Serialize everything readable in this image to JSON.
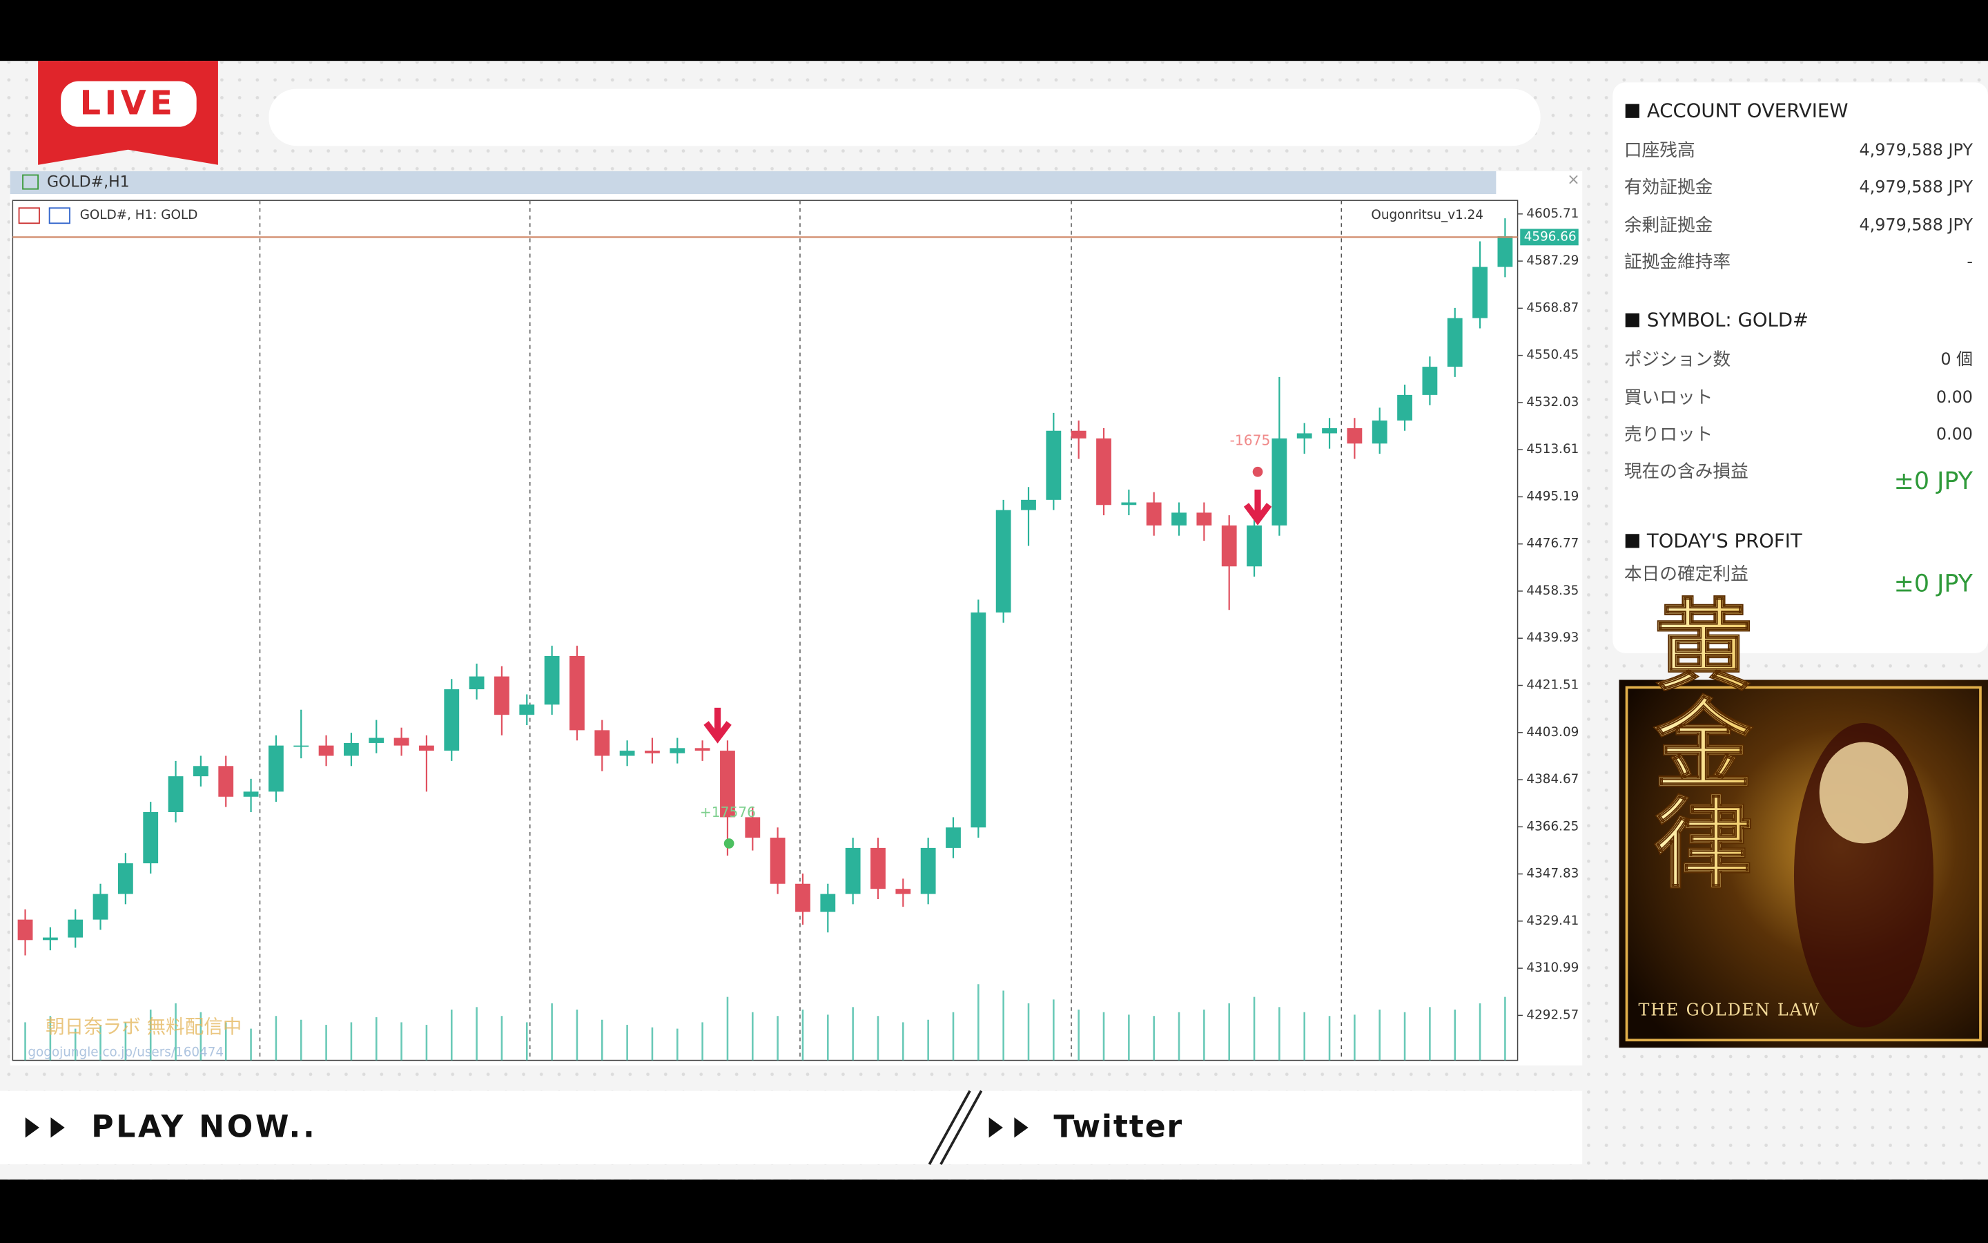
{
  "live_badge": "LIVE",
  "chart_window": {
    "title": "GOLD#,H1",
    "label": "GOLD#, H1:  GOLD",
    "indicator": "Ougonritsu_v1.24",
    "watermark": "朝日奈ラボ 無料配信中",
    "watermark_url": "gogojungle.co.jp/users/160474"
  },
  "chart_data": {
    "type": "candlestick",
    "up_color": "#2bb39a",
    "down_color": "#e0505f",
    "grid": true,
    "open": [
      4330,
      4322,
      4323,
      4330,
      4340,
      4352,
      4372,
      4386,
      4390,
      4378,
      4380,
      4398,
      4398,
      4394,
      4399,
      4401,
      4398,
      4396,
      4420,
      4425,
      4410,
      4414,
      4433,
      4404,
      4394,
      4396,
      4395,
      4397,
      4396,
      4370,
      4362,
      4344,
      4333,
      4340,
      4358,
      4342,
      4340,
      4358,
      4366,
      4450,
      4490,
      4494,
      4521,
      4518,
      4492,
      4493,
      4484,
      4489,
      4484,
      4468,
      4484,
      4518,
      4520,
      4522,
      4516,
      4525,
      4535,
      4546,
      4565,
      4585
    ],
    "high": [
      4334,
      4327,
      4334,
      4344,
      4356,
      4376,
      4392,
      4394,
      4394,
      4385,
      4402,
      4412,
      4402,
      4403,
      4408,
      4405,
      4402,
      4424,
      4430,
      4429,
      4418,
      4437,
      4437,
      4408,
      4400,
      4401,
      4401,
      4400,
      4400,
      4374,
      4366,
      4348,
      4344,
      4362,
      4362,
      4346,
      4362,
      4370,
      4455,
      4494,
      4499,
      4528,
      4525,
      4522,
      4498,
      4497,
      4493,
      4493,
      4488,
      4488,
      4542,
      4524,
      4526,
      4526,
      4530,
      4539,
      4550,
      4569,
      4595,
      4604
    ],
    "low": [
      4316,
      4318,
      4319,
      4326,
      4336,
      4348,
      4368,
      4382,
      4374,
      4372,
      4376,
      4393,
      4390,
      4390,
      4395,
      4394,
      4380,
      4392,
      4416,
      4402,
      4406,
      4410,
      4400,
      4388,
      4390,
      4391,
      4391,
      4392,
      4355,
      4357,
      4340,
      4328,
      4325,
      4336,
      4338,
      4335,
      4336,
      4354,
      4362,
      4446,
      4476,
      4490,
      4510,
      4488,
      4488,
      4480,
      4480,
      4478,
      4451,
      4464,
      4480,
      4512,
      4514,
      4510,
      4512,
      4521,
      4531,
      4542,
      4561,
      4581
    ],
    "close": [
      4322,
      4323,
      4330,
      4340,
      4352,
      4372,
      4386,
      4390,
      4378,
      4380,
      4398,
      4398,
      4394,
      4399,
      4401,
      4398,
      4396,
      4420,
      4425,
      4410,
      4414,
      4433,
      4404,
      4394,
      4396,
      4395,
      4397,
      4396,
      4370,
      4362,
      4344,
      4333,
      4340,
      4358,
      4342,
      4340,
      4358,
      4366,
      4450,
      4490,
      4494,
      4521,
      4518,
      4492,
      4493,
      4484,
      4489,
      4484,
      4468,
      4484,
      4518,
      4520,
      4522,
      4516,
      4525,
      4535,
      4546,
      4565,
      4585,
      4597
    ],
    "volume": [
      30,
      35,
      25,
      28,
      30,
      40,
      45,
      38,
      30,
      25,
      35,
      32,
      28,
      30,
      34,
      30,
      28,
      40,
      42,
      35,
      30,
      45,
      40,
      32,
      28,
      26,
      25,
      30,
      50,
      38,
      35,
      40,
      36,
      42,
      35,
      30,
      32,
      38,
      60,
      55,
      45,
      48,
      40,
      38,
      36,
      35,
      38,
      40,
      45,
      50,
      42,
      38,
      35,
      36,
      40,
      38,
      42,
      40,
      45,
      50
    ],
    "current_price": 4596.66,
    "annotations": [
      "+17576",
      "-1675"
    ],
    "ylim": [
      4275,
      4611
    ],
    "yticks": [
      4605.71,
      4587.29,
      4568.87,
      4550.45,
      4532.03,
      4513.61,
      4495.19,
      4476.77,
      4458.35,
      4439.93,
      4421.51,
      4403.09,
      4384.67,
      4366.25,
      4347.83,
      4329.41,
      4310.99,
      4292.57
    ]
  },
  "panel": {
    "sections": [
      {
        "title": "ACCOUNT OVERVIEW",
        "rows": [
          {
            "label": "口座残高",
            "value": "4,979,588 JPY"
          },
          {
            "label": "有効証拠金",
            "value": "4,979,588 JPY"
          },
          {
            "label": "余剰証拠金",
            "value": "4,979,588 JPY"
          },
          {
            "label": "証拠金維持率",
            "value": "-"
          }
        ]
      },
      {
        "title": "SYMBOL: GOLD#",
        "rows": [
          {
            "label": "ポジション数",
            "value": "0 個"
          },
          {
            "label": "買いロット",
            "value": "0.00"
          },
          {
            "label": "売りロット",
            "value": "0.00"
          },
          {
            "label": "現在の含み損益",
            "value": "±0 JPY"
          }
        ]
      },
      {
        "title": "TODAY'S PROFIT",
        "rows": [
          {
            "label": "本日の確定利益",
            "value": "±0 JPY"
          }
        ]
      }
    ]
  },
  "banner": {
    "title": "黄金律",
    "subtitle": "THE GOLDEN LAW"
  },
  "footer": {
    "left": "PLAY NOW..",
    "right": "Twitter"
  }
}
